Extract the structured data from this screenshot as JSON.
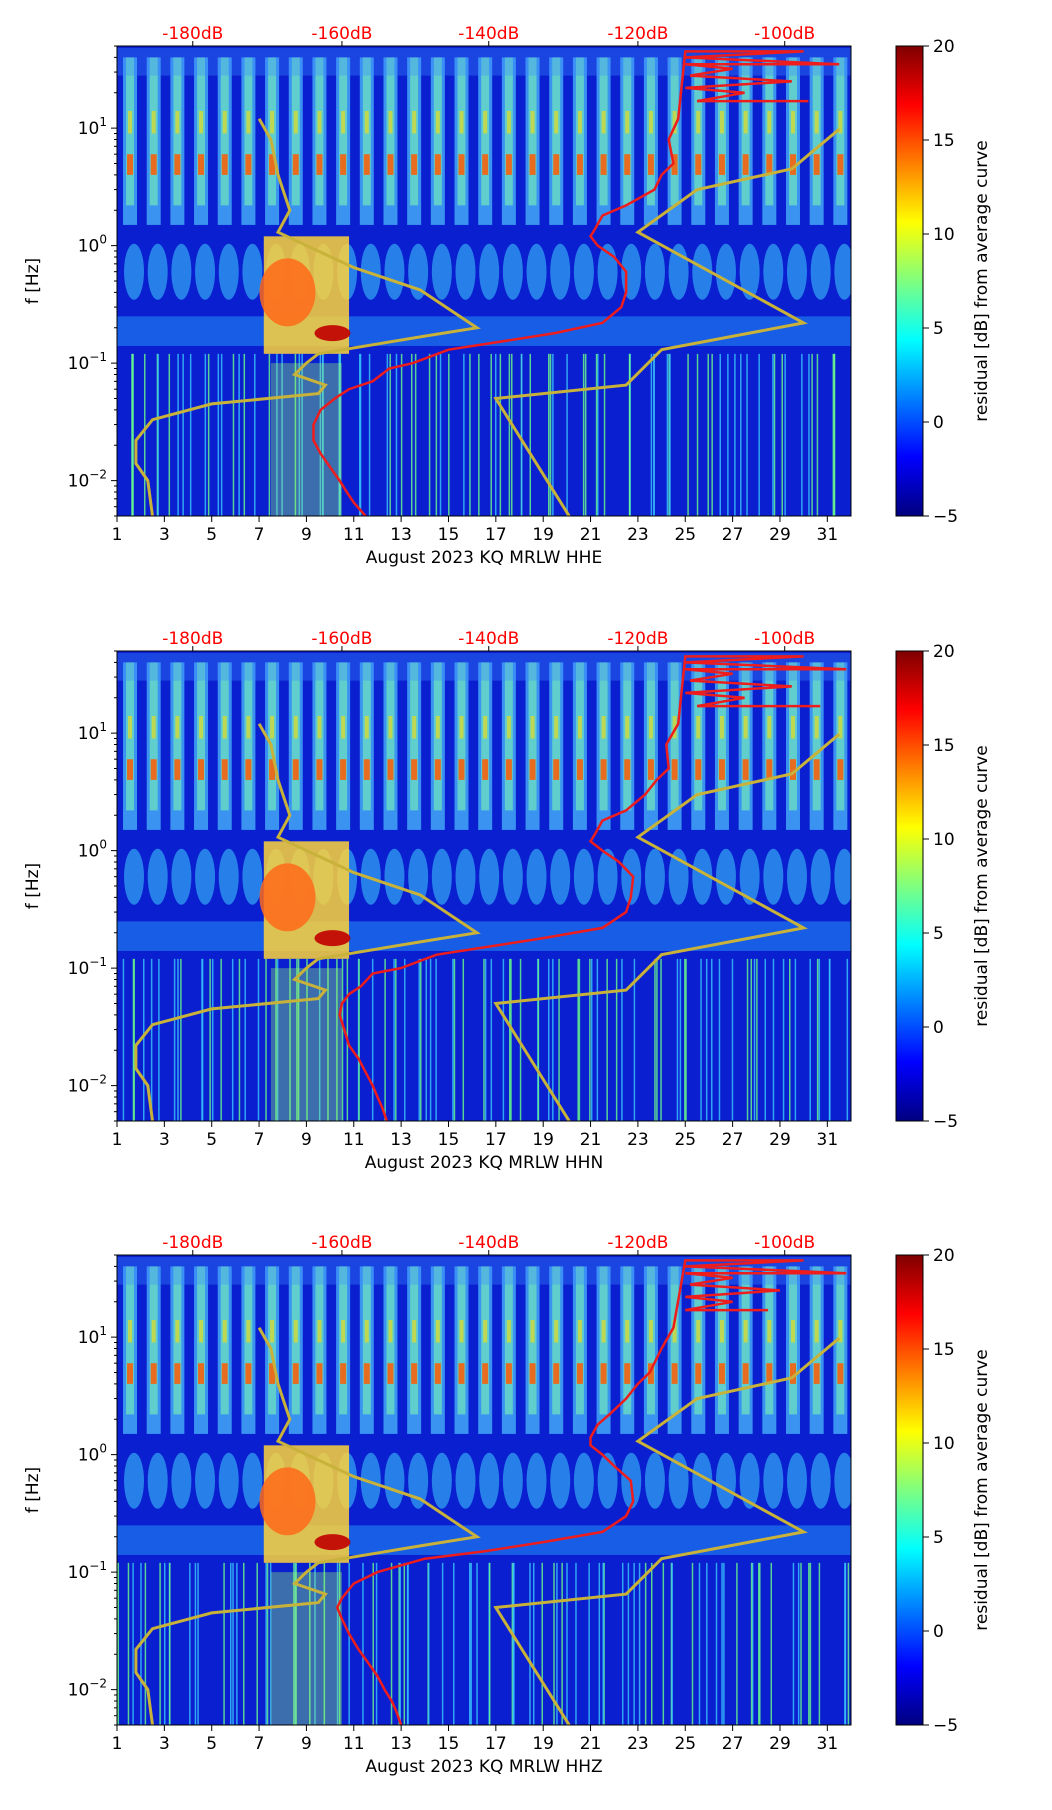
{
  "colors": {
    "db_axis": "#ff0000",
    "psd_curve": "#ee1c1c",
    "noise_model": "#c8b23a",
    "colormap_stops": [
      "#00007f",
      "#0000ff",
      "#007fff",
      "#00ffff",
      "#7fff7f",
      "#ffff00",
      "#ff7f00",
      "#ff0000",
      "#7f0000"
    ]
  },
  "chart_data": [
    {
      "type": "heatmap",
      "component": "HHE",
      "xlabel": "August 2023 KQ MRLW  HHE",
      "ylabel": "f [Hz]",
      "colorbar_label": "residual [dB] from average curve",
      "x_ticks": [
        "1",
        "3",
        "5",
        "7",
        "9",
        "11",
        "13",
        "15",
        "17",
        "19",
        "21",
        "23",
        "25",
        "27",
        "29",
        "31"
      ],
      "y_ticks": [
        {
          "base": "10",
          "exp": "1",
          "value": 10
        },
        {
          "base": "10",
          "exp": "0",
          "value": 1
        },
        {
          "base": "10",
          "exp": "−1",
          "value": 0.1
        },
        {
          "base": "10",
          "exp": "−2",
          "value": 0.01
        }
      ],
      "top_ticks": [
        {
          "label": "-180dB",
          "day": 4.2
        },
        {
          "label": "-160dB",
          "day": 10.5
        },
        {
          "label": "-140dB",
          "day": 16.7
        },
        {
          "label": "-120dB",
          "day": 23.0
        },
        {
          "label": "-100dB",
          "day": 29.2
        }
      ],
      "colorbar_ticks": [
        "20",
        "15",
        "10",
        "5",
        "0",
        "−5"
      ],
      "clim": [
        -5,
        20
      ],
      "xlim": [
        1,
        32
      ],
      "ylim": [
        0.005,
        50
      ],
      "yscale": "log",
      "psd_curve": [
        [
          30.2,
          17
        ],
        [
          25.5,
          17
        ],
        [
          27.5,
          20
        ],
        [
          25.0,
          22
        ],
        [
          29.5,
          25
        ],
        [
          25.2,
          28
        ],
        [
          27.0,
          32
        ],
        [
          25.0,
          35
        ],
        [
          31.5,
          35
        ],
        [
          25.0,
          40
        ],
        [
          30.0,
          45
        ],
        [
          25.0,
          45
        ],
        [
          24.7,
          12
        ],
        [
          24.3,
          8
        ],
        [
          24.5,
          5
        ],
        [
          24.0,
          4
        ],
        [
          23.7,
          3
        ],
        [
          22.5,
          2.2
        ],
        [
          21.5,
          1.8
        ],
        [
          21.2,
          1.4
        ],
        [
          21.0,
          1.2
        ],
        [
          21.3,
          1.0
        ],
        [
          22.0,
          0.8
        ],
        [
          22.5,
          0.6
        ],
        [
          22.5,
          0.4
        ],
        [
          22.3,
          0.3
        ],
        [
          21.5,
          0.22
        ],
        [
          19.5,
          0.18
        ],
        [
          17.0,
          0.15
        ],
        [
          15.0,
          0.13
        ],
        [
          13.5,
          0.1
        ],
        [
          12.5,
          0.09
        ],
        [
          11.8,
          0.07
        ],
        [
          10.8,
          0.06
        ],
        [
          10.2,
          0.05
        ],
        [
          9.6,
          0.04
        ],
        [
          9.3,
          0.03
        ],
        [
          9.3,
          0.022
        ],
        [
          9.6,
          0.017
        ],
        [
          10.0,
          0.013
        ],
        [
          10.4,
          0.01
        ],
        [
          10.7,
          0.008
        ],
        [
          11.0,
          0.0065
        ],
        [
          11.5,
          0.005
        ]
      ],
      "noise_model_curves": [
        [
          [
            2.5,
            0.005
          ],
          [
            2.3,
            0.01
          ],
          [
            1.8,
            0.014
          ],
          [
            1.8,
            0.022
          ],
          [
            2.5,
            0.033
          ],
          [
            5.0,
            0.045
          ],
          [
            9.5,
            0.055
          ],
          [
            9.8,
            0.065
          ],
          [
            8.5,
            0.08
          ],
          [
            9.0,
            0.1
          ],
          [
            9.5,
            0.12
          ],
          [
            14.0,
            0.17
          ],
          [
            16.2,
            0.2
          ],
          [
            13.8,
            0.42
          ],
          [
            11.0,
            0.65
          ],
          [
            7.8,
            1.3
          ],
          [
            8.3,
            2.0
          ],
          [
            7.8,
            4.0
          ],
          [
            7.5,
            8.0
          ],
          [
            7.0,
            12.0
          ]
        ],
        [
          [
            20.1,
            0.005
          ],
          [
            17.0,
            0.05
          ],
          [
            22.5,
            0.065
          ],
          [
            24.0,
            0.13
          ],
          [
            30.0,
            0.22
          ],
          [
            23.0,
            1.3
          ],
          [
            25.5,
            3.0
          ],
          [
            29.5,
            4.5
          ],
          [
            31.5,
            9.8
          ]
        ]
      ]
    },
    {
      "type": "heatmap",
      "component": "HHN",
      "xlabel": "August 2023 KQ MRLW  HHN",
      "ylabel": "f [Hz]",
      "colorbar_label": "residual [dB] from average curve",
      "x_ticks": [
        "1",
        "3",
        "5",
        "7",
        "9",
        "11",
        "13",
        "15",
        "17",
        "19",
        "21",
        "23",
        "25",
        "27",
        "29",
        "31"
      ],
      "y_ticks": [
        {
          "base": "10",
          "exp": "1",
          "value": 10
        },
        {
          "base": "10",
          "exp": "0",
          "value": 1
        },
        {
          "base": "10",
          "exp": "−1",
          "value": 0.1
        },
        {
          "base": "10",
          "exp": "−2",
          "value": 0.01
        }
      ],
      "top_ticks": [
        {
          "label": "-180dB",
          "day": 4.2
        },
        {
          "label": "-160dB",
          "day": 10.5
        },
        {
          "label": "-140dB",
          "day": 16.7
        },
        {
          "label": "-120dB",
          "day": 23.0
        },
        {
          "label": "-100dB",
          "day": 29.2
        }
      ],
      "colorbar_ticks": [
        "20",
        "15",
        "10",
        "5",
        "0",
        "−5"
      ],
      "clim": [
        -5,
        20
      ],
      "xlim": [
        1,
        32
      ],
      "ylim": [
        0.005,
        50
      ],
      "yscale": "log",
      "psd_curve": [
        [
          30.7,
          17
        ],
        [
          25.5,
          17
        ],
        [
          27.5,
          20
        ],
        [
          25.0,
          22
        ],
        [
          29.5,
          25
        ],
        [
          25.2,
          28
        ],
        [
          27.0,
          32
        ],
        [
          25.0,
          35
        ],
        [
          31.8,
          35
        ],
        [
          25.0,
          40
        ],
        [
          30.0,
          45
        ],
        [
          25.0,
          45
        ],
        [
          24.7,
          12
        ],
        [
          24.2,
          8
        ],
        [
          24.3,
          5
        ],
        [
          23.8,
          4
        ],
        [
          23.3,
          3
        ],
        [
          22.5,
          2.2
        ],
        [
          21.5,
          1.8
        ],
        [
          21.2,
          1.4
        ],
        [
          21.0,
          1.2
        ],
        [
          21.5,
          1.0
        ],
        [
          22.2,
          0.8
        ],
        [
          22.8,
          0.6
        ],
        [
          22.7,
          0.4
        ],
        [
          22.5,
          0.3
        ],
        [
          21.5,
          0.22
        ],
        [
          19.0,
          0.18
        ],
        [
          16.5,
          0.15
        ],
        [
          14.5,
          0.13
        ],
        [
          13.0,
          0.1
        ],
        [
          11.8,
          0.09
        ],
        [
          11.3,
          0.07
        ],
        [
          10.8,
          0.06
        ],
        [
          10.5,
          0.05
        ],
        [
          10.4,
          0.04
        ],
        [
          10.6,
          0.03
        ],
        [
          10.8,
          0.022
        ],
        [
          11.2,
          0.017
        ],
        [
          11.5,
          0.013
        ],
        [
          11.8,
          0.01
        ],
        [
          12.0,
          0.008
        ],
        [
          12.2,
          0.0065
        ],
        [
          12.4,
          0.005
        ]
      ],
      "noise_model_curves": [
        [
          [
            2.5,
            0.005
          ],
          [
            2.3,
            0.01
          ],
          [
            1.8,
            0.014
          ],
          [
            1.8,
            0.022
          ],
          [
            2.5,
            0.033
          ],
          [
            5.0,
            0.045
          ],
          [
            9.5,
            0.055
          ],
          [
            9.8,
            0.065
          ],
          [
            8.5,
            0.08
          ],
          [
            9.0,
            0.1
          ],
          [
            9.5,
            0.12
          ],
          [
            14.0,
            0.17
          ],
          [
            16.2,
            0.2
          ],
          [
            13.8,
            0.42
          ],
          [
            11.0,
            0.65
          ],
          [
            7.8,
            1.3
          ],
          [
            8.3,
            2.0
          ],
          [
            7.8,
            4.0
          ],
          [
            7.5,
            8.0
          ],
          [
            7.0,
            12.0
          ]
        ],
        [
          [
            20.1,
            0.005
          ],
          [
            17.0,
            0.05
          ],
          [
            22.5,
            0.065
          ],
          [
            24.0,
            0.13
          ],
          [
            30.0,
            0.22
          ],
          [
            23.0,
            1.3
          ],
          [
            25.5,
            3.0
          ],
          [
            29.5,
            4.5
          ],
          [
            31.5,
            9.8
          ]
        ]
      ]
    },
    {
      "type": "heatmap",
      "component": "HHZ",
      "xlabel": "August 2023 KQ MRLW  HHZ",
      "ylabel": "f [Hz]",
      "colorbar_label": "residual [dB] from average curve",
      "x_ticks": [
        "1",
        "3",
        "5",
        "7",
        "9",
        "11",
        "13",
        "15",
        "17",
        "19",
        "21",
        "23",
        "25",
        "27",
        "29",
        "31"
      ],
      "y_ticks": [
        {
          "base": "10",
          "exp": "1",
          "value": 10
        },
        {
          "base": "10",
          "exp": "0",
          "value": 1
        },
        {
          "base": "10",
          "exp": "−1",
          "value": 0.1
        },
        {
          "base": "10",
          "exp": "−2",
          "value": 0.01
        }
      ],
      "top_ticks": [
        {
          "label": "-180dB",
          "day": 4.2
        },
        {
          "label": "-160dB",
          "day": 10.5
        },
        {
          "label": "-140dB",
          "day": 16.7
        },
        {
          "label": "-120dB",
          "day": 23.0
        },
        {
          "label": "-100dB",
          "day": 29.2
        }
      ],
      "colorbar_ticks": [
        "20",
        "15",
        "10",
        "5",
        "0",
        "−5"
      ],
      "clim": [
        -5,
        20
      ],
      "xlim": [
        1,
        32
      ],
      "ylim": [
        0.005,
        50
      ],
      "yscale": "log",
      "psd_curve": [
        [
          28.5,
          17
        ],
        [
          25.0,
          17
        ],
        [
          27.0,
          20
        ],
        [
          25.0,
          22
        ],
        [
          29.0,
          25
        ],
        [
          25.2,
          28
        ],
        [
          27.0,
          32
        ],
        [
          25.0,
          35
        ],
        [
          31.8,
          35
        ],
        [
          25.0,
          40
        ],
        [
          30.0,
          45
        ],
        [
          25.0,
          45
        ],
        [
          24.5,
          12
        ],
        [
          24.0,
          8
        ],
        [
          23.5,
          5
        ],
        [
          23.0,
          4
        ],
        [
          22.5,
          3
        ],
        [
          21.8,
          2.2
        ],
        [
          21.3,
          1.8
        ],
        [
          21.0,
          1.4
        ],
        [
          21.0,
          1.2
        ],
        [
          21.5,
          1.0
        ],
        [
          22.0,
          0.8
        ],
        [
          22.7,
          0.6
        ],
        [
          22.8,
          0.4
        ],
        [
          22.5,
          0.3
        ],
        [
          21.5,
          0.22
        ],
        [
          19.0,
          0.18
        ],
        [
          16.5,
          0.15
        ],
        [
          14.0,
          0.13
        ],
        [
          12.0,
          0.1
        ],
        [
          11.0,
          0.08
        ],
        [
          10.5,
          0.06
        ],
        [
          10.3,
          0.05
        ],
        [
          10.5,
          0.04
        ],
        [
          10.8,
          0.03
        ],
        [
          11.2,
          0.022
        ],
        [
          11.6,
          0.017
        ],
        [
          12.0,
          0.013
        ],
        [
          12.3,
          0.01
        ],
        [
          12.6,
          0.008
        ],
        [
          12.8,
          0.0065
        ],
        [
          13.0,
          0.005
        ]
      ],
      "noise_model_curves": [
        [
          [
            2.5,
            0.005
          ],
          [
            2.3,
            0.01
          ],
          [
            1.8,
            0.014
          ],
          [
            1.8,
            0.022
          ],
          [
            2.5,
            0.033
          ],
          [
            5.0,
            0.045
          ],
          [
            9.5,
            0.055
          ],
          [
            9.8,
            0.065
          ],
          [
            8.5,
            0.08
          ],
          [
            9.0,
            0.1
          ],
          [
            9.5,
            0.12
          ],
          [
            14.0,
            0.17
          ],
          [
            16.2,
            0.2
          ],
          [
            13.8,
            0.42
          ],
          [
            11.0,
            0.65
          ],
          [
            7.8,
            1.3
          ],
          [
            8.3,
            2.0
          ],
          [
            7.8,
            4.0
          ],
          [
            7.5,
            8.0
          ],
          [
            7.0,
            12.0
          ]
        ],
        [
          [
            20.1,
            0.005
          ],
          [
            17.0,
            0.05
          ],
          [
            22.5,
            0.065
          ],
          [
            24.0,
            0.13
          ],
          [
            30.0,
            0.22
          ],
          [
            23.0,
            1.3
          ],
          [
            25.5,
            3.0
          ],
          [
            29.5,
            4.5
          ],
          [
            31.5,
            9.8
          ]
        ]
      ]
    }
  ]
}
